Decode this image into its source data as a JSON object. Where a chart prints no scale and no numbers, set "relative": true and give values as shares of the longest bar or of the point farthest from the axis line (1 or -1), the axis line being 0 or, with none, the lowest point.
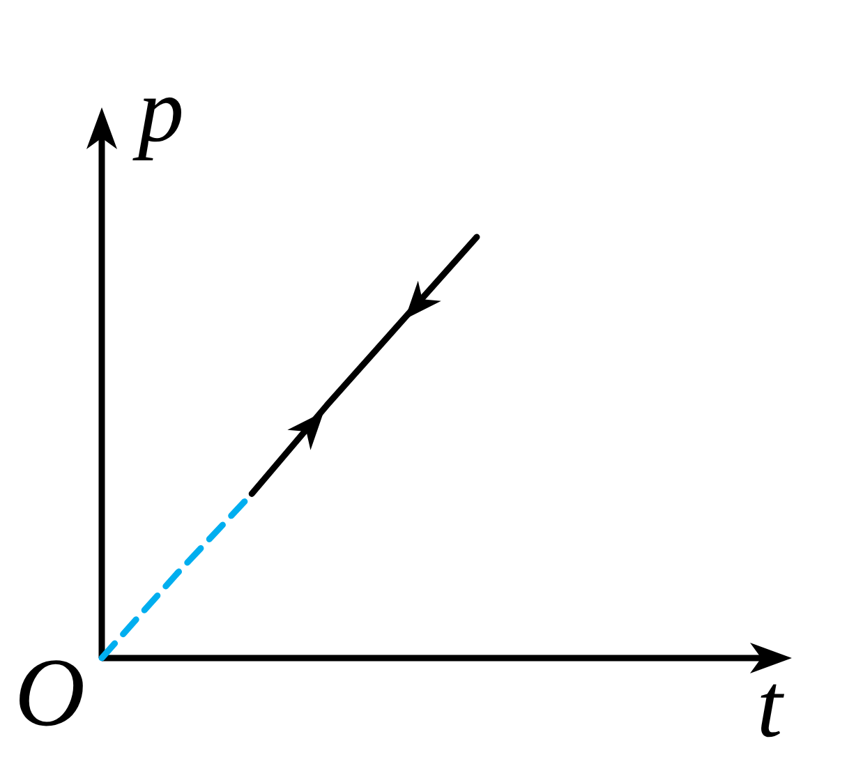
{
  "chart_data": {
    "type": "line",
    "relative": true,
    "xlabel": "t",
    "ylabel": "p",
    "annotations": [
      "O"
    ],
    "categories": [
      null,
      null,
      null,
      null,
      null,
      null
    ],
    "series": [
      {
        "color": "#00aeef",
        "line_style": "dashed",
        "values": [
          0,
          0.2,
          0.39,
          null,
          null,
          null
        ]
      },
      {
        "color": "#000000",
        "line_style": "solid",
        "values": [
          null,
          null,
          0.39,
          0.6,
          0.8,
          1
        ]
      }
    ]
  }
}
